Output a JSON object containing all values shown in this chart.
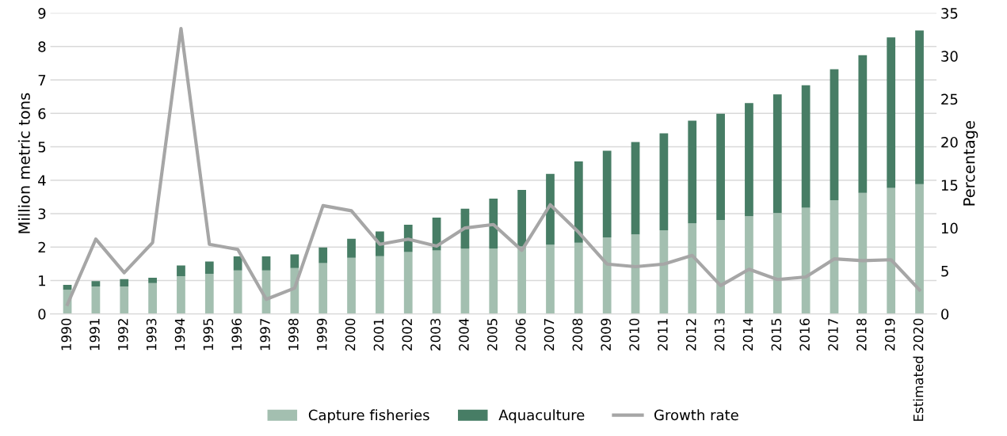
{
  "chart_data": {
    "type": "bar",
    "stacked": true,
    "ylabel": "Million metric tons",
    "y2label": "Percentage",
    "categories": [
      "1990",
      "1991",
      "1992",
      "1993",
      "1994",
      "1995",
      "1996",
      "1997",
      "1998",
      "1999",
      "2000",
      "2001",
      "2002",
      "2003",
      "2004",
      "2005",
      "2006",
      "2007",
      "2008",
      "2009",
      "2010",
      "2011",
      "2012",
      "2013",
      "2014",
      "2015",
      "2016",
      "2017",
      "2018",
      "2019",
      "Estimated 2020"
    ],
    "series": [
      {
        "name": "Capture fisheries",
        "color": "#a3bfb0",
        "values": [
          0.72,
          0.82,
          0.82,
          0.92,
          1.13,
          1.2,
          1.3,
          1.3,
          1.37,
          1.52,
          1.68,
          1.73,
          1.85,
          1.9,
          1.95,
          1.96,
          2.02,
          2.07,
          2.13,
          2.29,
          2.38,
          2.5,
          2.71,
          2.81,
          2.92,
          3.02,
          3.18,
          3.4,
          3.62,
          3.77,
          3.88
        ]
      },
      {
        "name": "Aquaculture",
        "color": "#477d65",
        "values": [
          0.15,
          0.16,
          0.22,
          0.16,
          0.32,
          0.37,
          0.42,
          0.42,
          0.41,
          0.47,
          0.57,
          0.74,
          0.82,
          0.98,
          1.2,
          1.49,
          1.69,
          2.12,
          2.43,
          2.59,
          2.76,
          2.9,
          3.07,
          3.18,
          3.39,
          3.55,
          3.66,
          3.92,
          4.12,
          4.5,
          4.6
        ]
      },
      {
        "name": "Growth rate",
        "type": "line",
        "axis": "y2",
        "color": "#a6a6a6",
        "values": [
          1.1,
          8.7,
          4.8,
          8.3,
          33.2,
          8.1,
          7.5,
          1.7,
          3.0,
          12.6,
          12.0,
          8.1,
          8.7,
          7.9,
          10.0,
          10.4,
          7.4,
          12.7,
          9.5,
          5.8,
          5.5,
          5.8,
          6.8,
          3.3,
          5.2,
          4.0,
          4.3,
          6.4,
          6.2,
          6.3,
          2.8
        ]
      }
    ],
    "ylim": [
      0,
      9
    ],
    "yticks": [
      0,
      1,
      2,
      3,
      4,
      5,
      6,
      7,
      8,
      9
    ],
    "y2lim": [
      0,
      35
    ],
    "y2ticks": [
      0,
      5,
      10,
      15,
      20,
      25,
      30,
      35
    ],
    "grid": "y",
    "legend": "bottom"
  }
}
